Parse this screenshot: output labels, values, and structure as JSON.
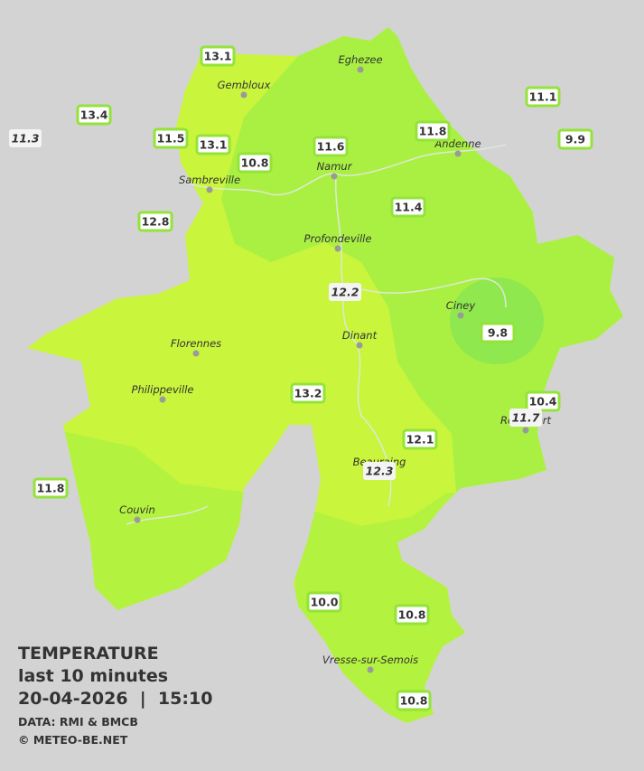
{
  "title": "TEMPERATURE",
  "subtitle": "last 10 minutes",
  "datetime": "20-04-2026  |  15:10",
  "source": "DATA: RMI & BMCB",
  "credit": "© METEO-BE.NET",
  "cities": [
    "Eghezee",
    "Gembloux",
    "Andenne",
    "Namur",
    "Sambreville",
    "Profondeville",
    "Ciney",
    "Dinant",
    "Florennes",
    "Philippeville",
    "Rochefort",
    "Beauraing",
    "Couvin",
    "Vresse-sur-Semois"
  ],
  "stations": [
    "13.1",
    "13.4",
    "11.3",
    "11.5",
    "13.1",
    "10.8",
    "11.6",
    "11.8",
    "11.1",
    "9.9",
    "11.4",
    "12.8",
    "12.2",
    "9.8",
    "13.2",
    "10.4",
    "11.7",
    "12.1",
    "12.3",
    "11.8",
    "10.0",
    "10.8",
    "10.8"
  ]
}
